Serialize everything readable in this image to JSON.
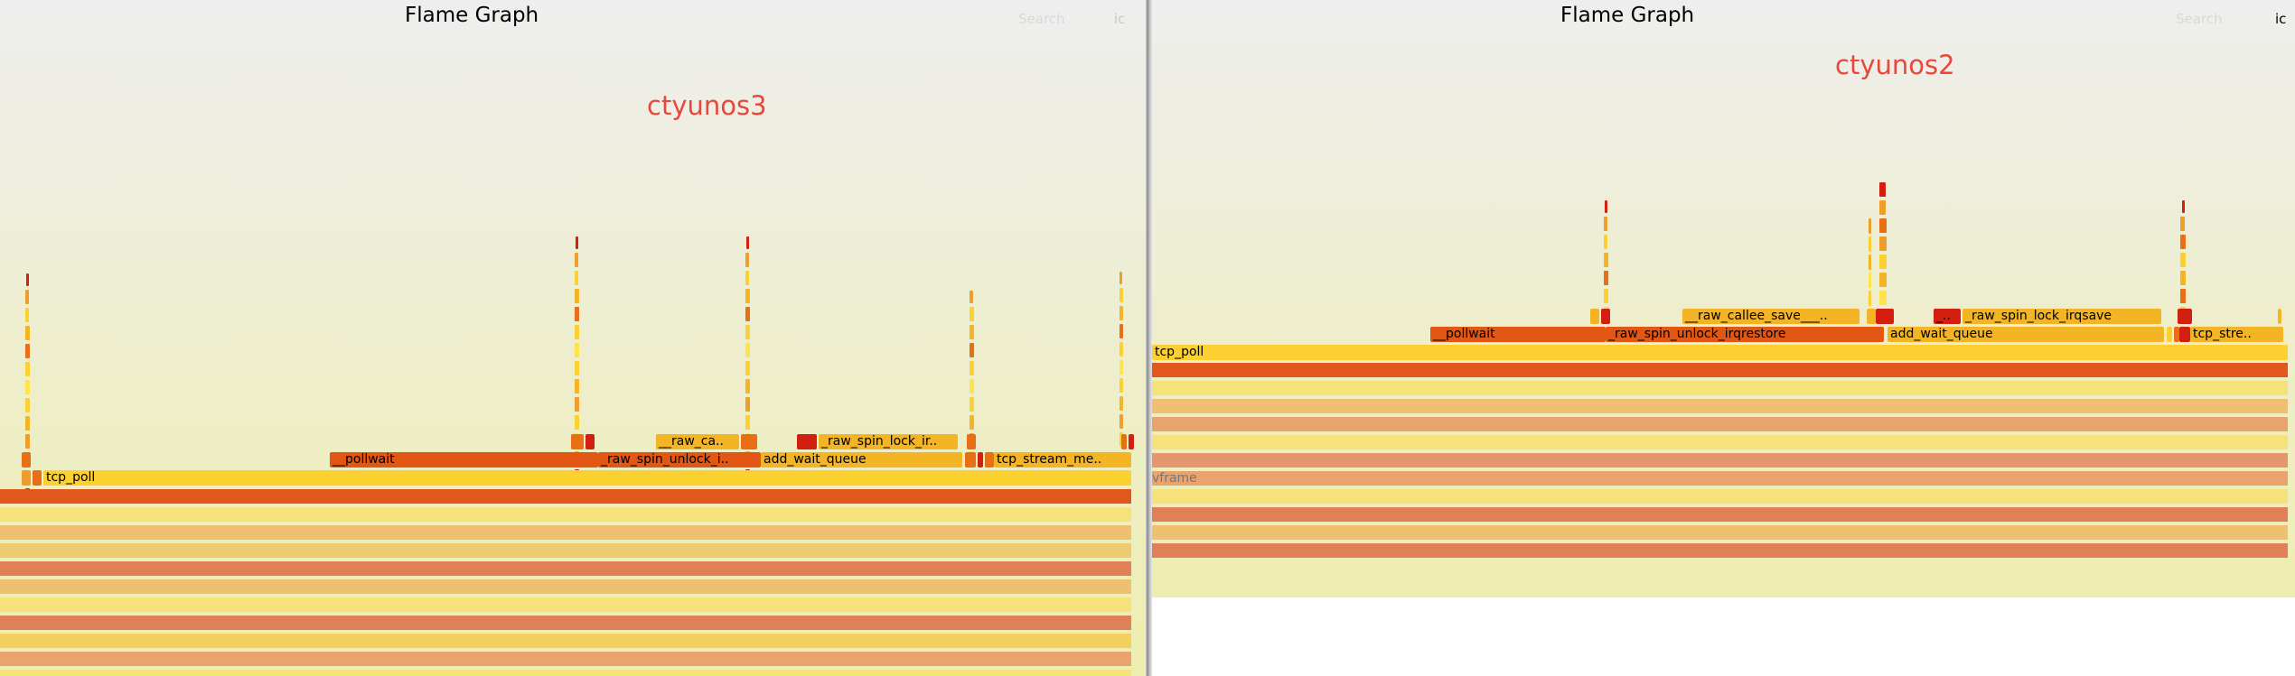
{
  "left": {
    "title": "Flame Graph",
    "search_label": "Search",
    "ic_label": "ic",
    "host_label": "ctyunos3",
    "frames": {
      "tcp_poll": "tcp_poll",
      "pollwait": "__pollwait",
      "raw_spin_unlock": "_raw_spin_unlock_i..",
      "add_wait_queue": "add_wait_queue",
      "tcp_stream_me": "tcp_stream_me..",
      "raw_ca": "__raw_ca..",
      "raw_spin_lock": "_raw_spin_lock_ir.."
    }
  },
  "right": {
    "title": "Flame Graph",
    "search_label": "Search",
    "ic_label": "ic",
    "host_label": "ctyunos2",
    "frames": {
      "tcp_poll": "tcp_poll",
      "pollwait": "__pollwait",
      "raw_spin_unlock": "_raw_spin_unlock_irqrestore",
      "add_wait_queue": "add_wait_queue",
      "tcp_stre": "tcp_stre..",
      "raw_callee_save": "__raw_callee_save___..",
      "small_frame": "_..",
      "raw_spin_lock": "_raw_spin_lock_irqsave",
      "ghost_frame": "vframe"
    }
  }
}
